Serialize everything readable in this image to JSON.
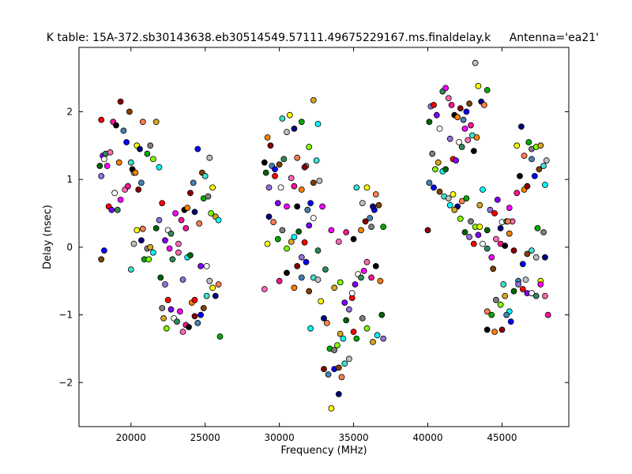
{
  "chart_data": {
    "type": "scatter",
    "title": "K table: 15A-372.sb30143638.eb30514549.57111.49675229167.ms.finaldelay.k",
    "title_right": "Antenna='ea21'",
    "xlabel": "Frequency (MHz)",
    "ylabel": "Delay (nsec)",
    "xlim": [
      16500,
      49500
    ],
    "ylim": [
      -2.65,
      2.95
    ],
    "xticks": [
      20000,
      25000,
      30000,
      35000,
      40000,
      45000
    ],
    "xtick_labels": [
      "20000",
      "25000",
      "30000",
      "35000",
      "40000",
      "45000"
    ],
    "yticks": [
      -2,
      -1,
      0,
      1,
      2
    ],
    "ytick_labels": [
      "−2",
      "−1",
      "0",
      "1",
      "2"
    ],
    "grid": false,
    "legend": "none",
    "marker": "circle",
    "marker_edge_color": "#000000",
    "palette": [
      "#ff0000",
      "#00aa00",
      "#0000ff",
      "#ff00ff",
      "#00ffff",
      "#ffff00",
      "#ff8000",
      "#8000ff",
      "#808080",
      "#804000",
      "#ff69b4",
      "#006400",
      "#000080",
      "#8b0000",
      "#ffffff",
      "#7fff00",
      "#40e0d0",
      "#ff1493",
      "#9370db",
      "#ff7f50",
      "#4682b4",
      "#2e8b57",
      "#daa520",
      "#c0c0c0",
      "#000000"
    ],
    "points": [
      [
        18000,
        1.88
      ],
      [
        18100,
        1.35
      ],
      [
        18200,
        1.3
      ],
      [
        18300,
        1.38
      ],
      [
        18400,
        1.2
      ],
      [
        18600,
        1.4
      ],
      [
        18800,
        1.85
      ],
      [
        19000,
        1.8
      ],
      [
        19200,
        1.25
      ],
      [
        19300,
        2.15
      ],
      [
        19500,
        1.72
      ],
      [
        19700,
        1.55
      ],
      [
        19900,
        2.0
      ],
      [
        20000,
        1.25
      ],
      [
        20200,
        1.1
      ],
      [
        20400,
        1.5
      ],
      [
        20600,
        1.45
      ],
      [
        20800,
        1.85
      ],
      [
        21100,
        1.38
      ],
      [
        21300,
        1.5
      ],
      [
        21500,
        1.3
      ],
      [
        21700,
        1.85
      ],
      [
        21900,
        1.18
      ],
      [
        17900,
        1.2
      ],
      [
        18000,
        1.05
      ],
      [
        18500,
        0.6
      ],
      [
        18700,
        0.55
      ],
      [
        18900,
        0.8
      ],
      [
        19100,
        0.55
      ],
      [
        19300,
        0.7
      ],
      [
        19600,
        0.85
      ],
      [
        19800,
        0.9
      ],
      [
        20100,
        1.15
      ],
      [
        20300,
        1.1
      ],
      [
        20500,
        0.85
      ],
      [
        20700,
        0.95
      ],
      [
        18200,
        -0.05
      ],
      [
        18000,
        -0.18
      ],
      [
        20000,
        -0.33
      ],
      [
        20200,
        0.05
      ],
      [
        20400,
        0.25
      ],
      [
        20700,
        0.1
      ],
      [
        20800,
        0.27
      ],
      [
        20900,
        -0.18
      ],
      [
        21100,
        -0.02
      ],
      [
        21200,
        -0.18
      ],
      [
        21300,
        0.0
      ],
      [
        21500,
        -0.08
      ],
      [
        21700,
        0.28
      ],
      [
        21900,
        0.4
      ],
      [
        22100,
        0.65
      ],
      [
        22300,
        0.1
      ],
      [
        22500,
        0.25
      ],
      [
        22700,
        0.2
      ],
      [
        23000,
        0.5
      ],
      [
        23200,
        0.05
      ],
      [
        23400,
        0.4
      ],
      [
        23600,
        0.55
      ],
      [
        23800,
        0.58
      ],
      [
        24000,
        0.8
      ],
      [
        24200,
        0.95
      ],
      [
        24500,
        1.45
      ],
      [
        24800,
        1.1
      ],
      [
        25000,
        1.05
      ],
      [
        25300,
        1.32
      ],
      [
        25500,
        0.88
      ],
      [
        24300,
        0.52
      ],
      [
        24600,
        0.35
      ],
      [
        24900,
        0.72
      ],
      [
        25200,
        0.75
      ],
      [
        25400,
        0.5
      ],
      [
        25700,
        0.45
      ],
      [
        25900,
        0.4
      ],
      [
        22000,
        -0.45
      ],
      [
        22300,
        -0.55
      ],
      [
        22500,
        -0.78
      ],
      [
        22700,
        -0.92
      ],
      [
        22900,
        -1.05
      ],
      [
        23100,
        -1.1
      ],
      [
        23300,
        -0.95
      ],
      [
        23500,
        -1.25
      ],
      [
        23700,
        -1.15
      ],
      [
        23900,
        -1.18
      ],
      [
        24100,
        -0.82
      ],
      [
        24300,
        -1.02
      ],
      [
        24500,
        -1.12
      ],
      [
        24700,
        -1.0
      ],
      [
        24900,
        -0.9
      ],
      [
        25100,
        -0.72
      ],
      [
        25300,
        -0.5
      ],
      [
        25500,
        -0.6
      ],
      [
        25700,
        -0.72
      ],
      [
        25900,
        -0.55
      ],
      [
        26000,
        -1.32
      ],
      [
        22100,
        -0.9
      ],
      [
        22400,
        -1.2
      ],
      [
        22200,
        -1.05
      ],
      [
        23800,
        -0.15
      ],
      [
        24000,
        -0.12
      ],
      [
        23500,
        -0.48
      ],
      [
        24300,
        -0.78
      ],
      [
        24700,
        -0.28
      ],
      [
        25100,
        -0.28
      ],
      [
        22800,
        -0.18
      ],
      [
        22600,
        -0.02
      ],
      [
        23200,
        -0.08
      ],
      [
        23700,
        0.28
      ],
      [
        29000,
        1.25
      ],
      [
        29200,
        1.62
      ],
      [
        29400,
        1.5
      ],
      [
        29500,
        1.2
      ],
      [
        29700,
        1.15
      ],
      [
        30000,
        1.22
      ],
      [
        30200,
        1.9
      ],
      [
        30500,
        1.7
      ],
      [
        30700,
        1.95
      ],
      [
        31000,
        1.75
      ],
      [
        31200,
        1.32
      ],
      [
        31500,
        1.85
      ],
      [
        31800,
        1.2
      ],
      [
        32000,
        1.48
      ],
      [
        32300,
        2.17
      ],
      [
        32600,
        1.82
      ],
      [
        29100,
        1.1
      ],
      [
        29300,
        0.88
      ],
      [
        29700,
        1.05
      ],
      [
        29900,
        0.65
      ],
      [
        30100,
        0.88
      ],
      [
        30300,
        1.3
      ],
      [
        30500,
        0.6
      ],
      [
        30800,
        1.02
      ],
      [
        31000,
        0.9
      ],
      [
        31200,
        0.6
      ],
      [
        31500,
        0.85
      ],
      [
        31700,
        1.18
      ],
      [
        31900,
        0.55
      ],
      [
        32100,
        0.65
      ],
      [
        32300,
        0.95
      ],
      [
        32500,
        1.28
      ],
      [
        32700,
        0.98
      ],
      [
        29200,
        0.05
      ],
      [
        29300,
        0.45
      ],
      [
        29600,
        0.37
      ],
      [
        29900,
        0.12
      ],
      [
        30200,
        0.25
      ],
      [
        30500,
        -0.02
      ],
      [
        30800,
        0.08
      ],
      [
        31000,
        0.15
      ],
      [
        31300,
        0.23
      ],
      [
        31500,
        -0.15
      ],
      [
        31700,
        0.07
      ],
      [
        32000,
        0.32
      ],
      [
        32300,
        0.43
      ],
      [
        32600,
        -0.05
      ],
      [
        32900,
        0.6
      ],
      [
        29000,
        -0.62
      ],
      [
        30000,
        -0.5
      ],
      [
        30500,
        -0.38
      ],
      [
        31000,
        -0.6
      ],
      [
        31200,
        -0.28
      ],
      [
        31500,
        -0.45
      ],
      [
        31800,
        -0.22
      ],
      [
        32000,
        -0.65
      ],
      [
        32300,
        -0.45
      ],
      [
        32600,
        -0.48
      ],
      [
        32800,
        -0.8
      ],
      [
        33000,
        -1.05
      ],
      [
        33200,
        -1.12
      ],
      [
        33400,
        -1.5
      ],
      [
        33700,
        -1.52
      ],
      [
        33900,
        -1.45
      ],
      [
        34100,
        -1.28
      ],
      [
        34300,
        -1.35
      ],
      [
        34500,
        -1.08
      ],
      [
        34700,
        -0.92
      ],
      [
        34900,
        -0.75
      ],
      [
        35100,
        -0.55
      ],
      [
        35300,
        -0.4
      ],
      [
        35500,
        -0.45
      ],
      [
        35700,
        -0.35
      ],
      [
        35900,
        -0.22
      ],
      [
        36200,
        -0.45
      ],
      [
        36500,
        -0.28
      ],
      [
        36800,
        -0.5
      ],
      [
        33000,
        -1.8
      ],
      [
        33300,
        -1.88
      ],
      [
        33700,
        -1.8
      ],
      [
        34000,
        -1.78
      ],
      [
        34400,
        -1.72
      ],
      [
        34700,
        -1.65
      ],
      [
        33500,
        -2.38
      ],
      [
        34000,
        -2.17
      ],
      [
        34200,
        -1.92
      ],
      [
        35200,
        -1.35
      ],
      [
        35600,
        -1.05
      ],
      [
        35900,
        -1.2
      ],
      [
        36300,
        -1.4
      ],
      [
        36600,
        -1.3
      ],
      [
        36900,
        -1.0
      ],
      [
        37000,
        -1.35
      ],
      [
        35000,
        -1.25
      ],
      [
        34400,
        -0.82
      ],
      [
        34900,
        -0.68
      ],
      [
        33100,
        -0.33
      ],
      [
        33500,
        0.25
      ],
      [
        34000,
        0.08
      ],
      [
        34500,
        0.22
      ],
      [
        35000,
        0.12
      ],
      [
        35500,
        0.25
      ],
      [
        35800,
        0.38
      ],
      [
        36100,
        0.43
      ],
      [
        36400,
        0.55
      ],
      [
        36700,
        0.62
      ],
      [
        35200,
        0.88
      ],
      [
        35600,
        0.65
      ],
      [
        35900,
        0.88
      ],
      [
        36300,
        0.6
      ],
      [
        36500,
        0.78
      ],
      [
        37000,
        0.3
      ],
      [
        36200,
        0.3
      ],
      [
        34100,
        -0.52
      ],
      [
        33700,
        -0.6
      ],
      [
        32100,
        -1.2
      ]
    ],
    "points2": [
      [
        40100,
        1.85
      ],
      [
        40200,
        2.08
      ],
      [
        40400,
        2.1
      ],
      [
        40600,
        1.95
      ],
      [
        40800,
        1.75
      ],
      [
        41000,
        2.3
      ],
      [
        41200,
        2.35
      ],
      [
        41400,
        2.2
      ],
      [
        41600,
        2.1
      ],
      [
        41800,
        1.95
      ],
      [
        42000,
        1.92
      ],
      [
        42200,
        2.05
      ],
      [
        42400,
        1.88
      ],
      [
        42600,
        2.0
      ],
      [
        42800,
        2.12
      ],
      [
        43000,
        1.65
      ],
      [
        43200,
        2.72
      ],
      [
        43400,
        2.38
      ],
      [
        43600,
        2.15
      ],
      [
        43800,
        2.1
      ],
      [
        44000,
        2.32
      ],
      [
        40300,
        1.38
      ],
      [
        40500,
        1.15
      ],
      [
        40700,
        1.25
      ],
      [
        41000,
        1.12
      ],
      [
        41200,
        1.15
      ],
      [
        41500,
        1.6
      ],
      [
        41700,
        1.3
      ],
      [
        41900,
        1.28
      ],
      [
        42100,
        1.55
      ],
      [
        42300,
        1.48
      ],
      [
        42500,
        1.75
      ],
      [
        42700,
        1.58
      ],
      [
        42900,
        1.8
      ],
      [
        43100,
        1.42
      ],
      [
        43300,
        1.62
      ],
      [
        40000,
        0.25
      ],
      [
        40100,
        0.95
      ],
      [
        40400,
        0.88
      ],
      [
        40800,
        0.82
      ],
      [
        41100,
        0.75
      ],
      [
        41400,
        0.72
      ],
      [
        41700,
        0.78
      ],
      [
        42000,
        0.6
      ],
      [
        42300,
        0.68
      ],
      [
        42600,
        0.72
      ],
      [
        42900,
        0.38
      ],
      [
        43200,
        0.3
      ],
      [
        43500,
        0.62
      ],
      [
        43700,
        0.85
      ],
      [
        44000,
        0.25
      ],
      [
        44200,
        0.55
      ],
      [
        44500,
        0.5
      ],
      [
        44700,
        0.7
      ],
      [
        45000,
        0.37
      ],
      [
        45300,
        0.38
      ],
      [
        45500,
        0.58
      ],
      [
        45700,
        0.38
      ],
      [
        46000,
        0.8
      ],
      [
        46200,
        1.05
      ],
      [
        46500,
        0.85
      ],
      [
        46700,
        0.9
      ],
      [
        47000,
        1.3
      ],
      [
        47200,
        1.05
      ],
      [
        47500,
        1.15
      ],
      [
        47800,
        1.2
      ],
      [
        48000,
        1.28
      ],
      [
        46000,
        1.5
      ],
      [
        46300,
        1.78
      ],
      [
        46500,
        1.35
      ],
      [
        46800,
        1.55
      ],
      [
        47000,
        1.45
      ],
      [
        47300,
        1.48
      ],
      [
        47600,
        1.5
      ],
      [
        47900,
        0.92
      ],
      [
        42500,
        0.22
      ],
      [
        42800,
        0.15
      ],
      [
        43100,
        0.05
      ],
      [
        43400,
        0.18
      ],
      [
        43700,
        0.05
      ],
      [
        44000,
        -0.02
      ],
      [
        44300,
        -0.15
      ],
      [
        44600,
        0.12
      ],
      [
        44900,
        0.05
      ],
      [
        45200,
        0.02
      ],
      [
        45500,
        0.2
      ],
      [
        45800,
        -0.05
      ],
      [
        46100,
        -0.5
      ],
      [
        46400,
        -0.25
      ],
      [
        46700,
        -0.1
      ],
      [
        47000,
        -0.05
      ],
      [
        47300,
        -0.15
      ],
      [
        47600,
        -0.5
      ],
      [
        47900,
        -0.15
      ],
      [
        44000,
        -0.95
      ],
      [
        44300,
        -1.0
      ],
      [
        44600,
        -0.78
      ],
      [
        44900,
        -0.85
      ],
      [
        45200,
        -0.72
      ],
      [
        45500,
        -0.95
      ],
      [
        45800,
        -0.65
      ],
      [
        46100,
        -0.55
      ],
      [
        46400,
        -0.62
      ],
      [
        46700,
        -0.68
      ],
      [
        47000,
        -0.68
      ],
      [
        47300,
        -0.72
      ],
      [
        47600,
        -0.55
      ],
      [
        47900,
        -0.72
      ],
      [
        48100,
        -1.0
      ],
      [
        44000,
        -1.22
      ],
      [
        44500,
        -1.25
      ],
      [
        45000,
        -1.22
      ],
      [
        45300,
        -1.0
      ],
      [
        45600,
        -1.1
      ],
      [
        44400,
        -0.32
      ],
      [
        45100,
        -0.55
      ],
      [
        46600,
        -0.48
      ],
      [
        43500,
        0.3
      ],
      [
        44900,
        0.28
      ],
      [
        45400,
        0.38
      ],
      [
        47400,
        0.28
      ],
      [
        47800,
        0.22
      ],
      [
        42200,
        0.42
      ],
      [
        41800,
        0.55
      ],
      [
        41500,
        0.62
      ]
    ]
  }
}
